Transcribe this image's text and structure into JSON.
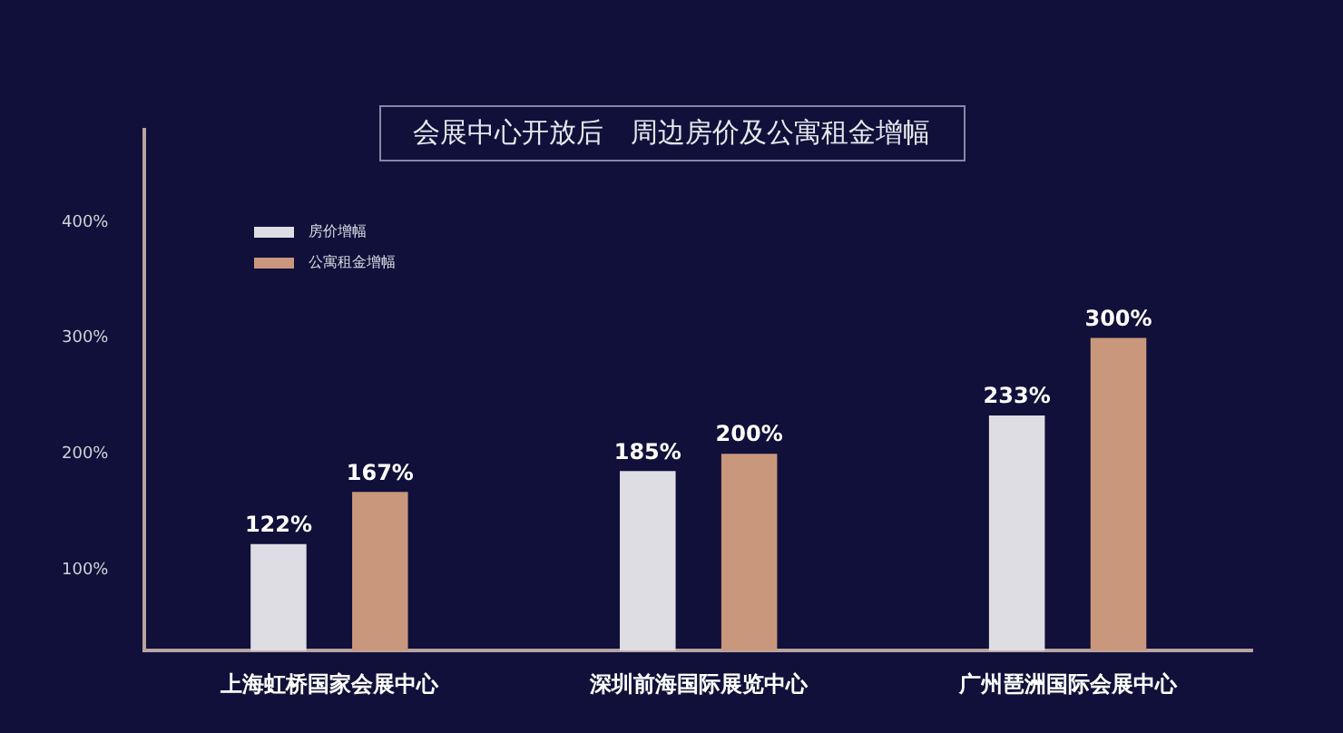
{
  "chart_data": {
    "type": "bar",
    "title": "会展中心开放后　周边房价及公寓租金增幅",
    "categories": [
      "上海虹桥国家会展中心",
      "深圳前海国际展览中心",
      "广州琶洲国际会展中心"
    ],
    "series": [
      {
        "name": "房价增幅",
        "color": "#dedde3",
        "values": [
          122,
          185,
          233
        ]
      },
      {
        "name": "公寓租金增幅",
        "color": "#c9977c",
        "values": [
          167,
          200,
          300
        ]
      }
    ],
    "ylim": [
      30,
      480
    ],
    "yticks": [
      {
        "value": 100,
        "label": "100%"
      },
      {
        "value": 200,
        "label": "200%"
      },
      {
        "value": 300,
        "label": "300%"
      },
      {
        "value": 400,
        "label": "400%"
      }
    ],
    "value_labels": [
      [
        "122%",
        "185%",
        "233%"
      ],
      [
        "167%",
        "200%",
        "300%"
      ]
    ],
    "grid": false,
    "legend": "top left"
  }
}
